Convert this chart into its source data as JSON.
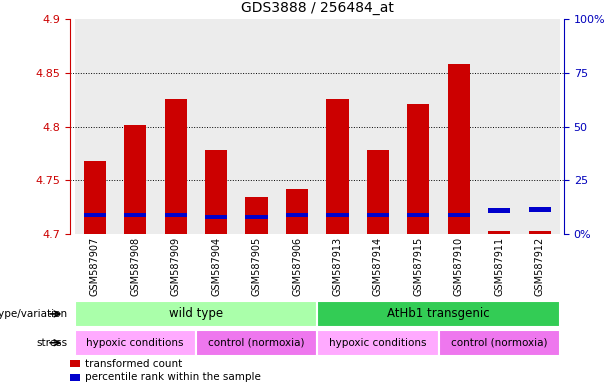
{
  "title": "GDS3888 / 256484_at",
  "samples": [
    "GSM587907",
    "GSM587908",
    "GSM587909",
    "GSM587904",
    "GSM587905",
    "GSM587906",
    "GSM587913",
    "GSM587914",
    "GSM587915",
    "GSM587910",
    "GSM587911",
    "GSM587912"
  ],
  "red_bar_top": [
    4.768,
    4.802,
    4.826,
    4.778,
    4.735,
    4.742,
    4.826,
    4.778,
    4.821,
    4.858,
    4.703,
    4.703
  ],
  "blue_marker_pos": [
    4.718,
    4.718,
    4.718,
    4.716,
    4.716,
    4.718,
    4.718,
    4.718,
    4.718,
    4.718,
    4.722,
    4.723
  ],
  "bar_base": 4.7,
  "ylim_left": [
    4.7,
    4.9
  ],
  "ylim_right": [
    0,
    100
  ],
  "yticks_left": [
    4.7,
    4.75,
    4.8,
    4.85,
    4.9
  ],
  "ytick_labels_left": [
    "4.7",
    "4.75",
    "4.8",
    "4.85",
    "4.9"
  ],
  "yticks_right": [
    0,
    25,
    50,
    75,
    100
  ],
  "ytick_labels_right": [
    "0%",
    "25",
    "50",
    "75",
    "100%"
  ],
  "grid_lines": [
    4.75,
    4.8,
    4.85
  ],
  "left_axis_color": "#cc0000",
  "right_axis_color": "#0000bb",
  "bar_color": "#cc0000",
  "blue_color": "#0000cc",
  "genotype_groups": [
    {
      "label": "wild type",
      "start": 0,
      "end": 5,
      "color": "#aaffaa"
    },
    {
      "label": "AtHb1 transgenic",
      "start": 6,
      "end": 11,
      "color": "#33cc55"
    }
  ],
  "stress_groups": [
    {
      "label": "hypoxic conditions",
      "start": 0,
      "end": 2,
      "color": "#ffaaff"
    },
    {
      "label": "control (normoxia)",
      "start": 3,
      "end": 5,
      "color": "#ee77ee"
    },
    {
      "label": "hypoxic conditions",
      "start": 6,
      "end": 8,
      "color": "#ffaaff"
    },
    {
      "label": "control (normoxia)",
      "start": 9,
      "end": 11,
      "color": "#ee77ee"
    }
  ],
  "genotype_label": "genotype/variation",
  "stress_label": "stress",
  "legend_items": [
    {
      "color": "#cc0000",
      "label": "transformed count"
    },
    {
      "color": "#0000cc",
      "label": "percentile rank within the sample"
    }
  ],
  "bar_width": 0.55,
  "col_bg_color": "#e0e0e0",
  "blue_bar_height": 0.004
}
